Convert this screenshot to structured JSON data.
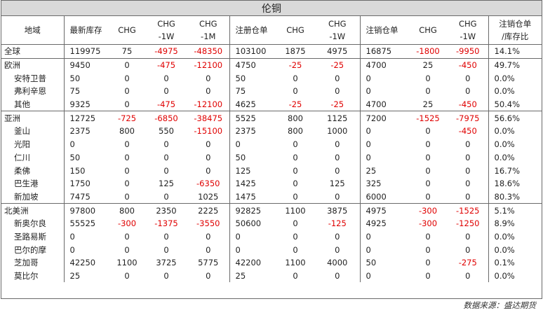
{
  "title": "伦铜",
  "headers": [
    "地域",
    "最新库存",
    "CHG",
    "CHG\n-1W",
    "CHG\n-1M",
    "注册仓单",
    "CHG",
    "CHG\n-1W",
    "注销仓单",
    "CHG",
    "CHG\n-1W",
    "注销仓单\n/库存比"
  ],
  "groups": [
    {
      "rows": [
        {
          "region": "全球",
          "indent": false,
          "values": [
            "119975",
            "75",
            "-4975",
            "-48350",
            "103100",
            "1875",
            "4975",
            "16875",
            "-1800",
            "-9950",
            "14.1%"
          ]
        }
      ]
    },
    {
      "rows": [
        {
          "region": "欧洲",
          "indent": false,
          "values": [
            "9450",
            "0",
            "-475",
            "-12100",
            "4750",
            "-25",
            "-25",
            "4700",
            "25",
            "-450",
            "49.7%"
          ]
        },
        {
          "region": "安特卫普",
          "indent": true,
          "values": [
            "50",
            "0",
            "0",
            "0",
            "50",
            "0",
            "0",
            "0",
            "0",
            "0",
            "0.0%"
          ]
        },
        {
          "region": "弗利辛恩",
          "indent": true,
          "values": [
            "75",
            "0",
            "0",
            "0",
            "75",
            "0",
            "0",
            "0",
            "0",
            "0",
            "0.0%"
          ]
        },
        {
          "region": "其他",
          "indent": true,
          "values": [
            "9325",
            "0",
            "-475",
            "-12100",
            "4625",
            "-25",
            "-25",
            "4700",
            "25",
            "-450",
            "50.4%"
          ]
        }
      ]
    },
    {
      "rows": [
        {
          "region": "亚洲",
          "indent": false,
          "values": [
            "12725",
            "-725",
            "-6850",
            "-38475",
            "5525",
            "800",
            "1125",
            "7200",
            "-1525",
            "-7975",
            "56.6%"
          ]
        },
        {
          "region": "釜山",
          "indent": true,
          "values": [
            "2375",
            "800",
            "550",
            "-15100",
            "2375",
            "800",
            "1000",
            "0",
            "0",
            "-450",
            "0.0%"
          ]
        },
        {
          "region": "光阳",
          "indent": true,
          "values": [
            "0",
            "0",
            "0",
            "0",
            "0",
            "0",
            "0",
            "0",
            "0",
            "0",
            "0.0%"
          ]
        },
        {
          "region": "仁川",
          "indent": true,
          "values": [
            "50",
            "0",
            "0",
            "0",
            "50",
            "0",
            "0",
            "0",
            "0",
            "0",
            "0.0%"
          ]
        },
        {
          "region": "柔佛",
          "indent": true,
          "values": [
            "150",
            "0",
            "0",
            "0",
            "125",
            "0",
            "0",
            "25",
            "0",
            "0",
            "16.7%"
          ]
        },
        {
          "region": "巴生港",
          "indent": true,
          "values": [
            "1750",
            "0",
            "125",
            "-6350",
            "1425",
            "0",
            "125",
            "325",
            "0",
            "0",
            "18.6%"
          ]
        },
        {
          "region": "新加坡",
          "indent": true,
          "values": [
            "7475",
            "0",
            "0",
            "1025",
            "1475",
            "0",
            "0",
            "6000",
            "0",
            "0",
            "80.3%"
          ]
        }
      ]
    },
    {
      "rows": [
        {
          "region": "北美洲",
          "indent": false,
          "values": [
            "97800",
            "800",
            "2350",
            "2225",
            "92825",
            "1100",
            "3875",
            "4975",
            "-300",
            "-1525",
            "5.1%"
          ]
        },
        {
          "region": "新奥尔良",
          "indent": true,
          "values": [
            "55525",
            "-300",
            "-1375",
            "-3550",
            "50600",
            "0",
            "-125",
            "4925",
            "-300",
            "-1250",
            "8.9%"
          ]
        },
        {
          "region": "圣路易斯",
          "indent": true,
          "values": [
            "0",
            "0",
            "0",
            "0",
            "0",
            "0",
            "0",
            "0",
            "0",
            "0",
            "0.0%"
          ]
        },
        {
          "region": "巴尔的摩",
          "indent": true,
          "values": [
            "0",
            "0",
            "0",
            "0",
            "0",
            "0",
            "0",
            "0",
            "0",
            "0",
            "0.0%"
          ]
        },
        {
          "region": "芝加哥",
          "indent": true,
          "values": [
            "42250",
            "1100",
            "3725",
            "5775",
            "42200",
            "1100",
            "4000",
            "50",
            "0",
            "-275",
            "0.1%"
          ]
        },
        {
          "region": "莫比尔",
          "indent": true,
          "values": [
            "25",
            "0",
            "0",
            "0",
            "25",
            "0",
            "0",
            "0",
            "0",
            "0",
            "0.0%"
          ]
        }
      ]
    }
  ],
  "source": "数据来源：盛达期货",
  "colors": {
    "negative": "#e00000",
    "title_bg": "#d9d9d9",
    "border": "#6a6a6a"
  }
}
